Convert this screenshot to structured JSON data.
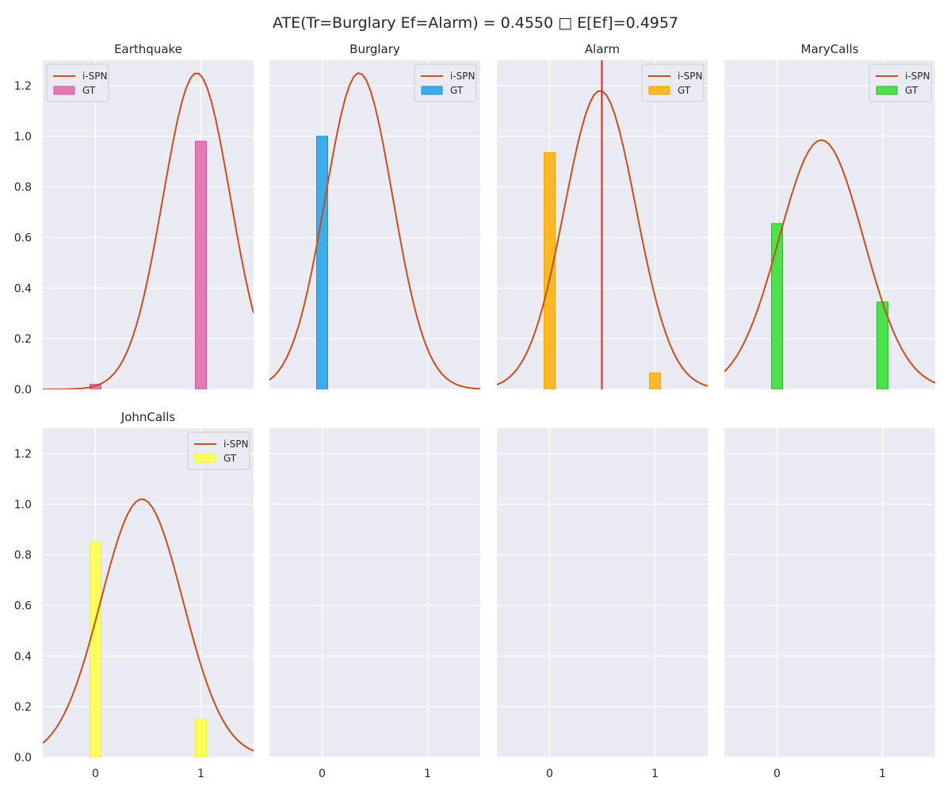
{
  "figure": {
    "suptitle": "ATE(Tr=Burglary Ef=Alarm) = 0.4550 □ E[Ef]=0.4957",
    "background": "#eaeaf2",
    "grid_color": "#ffffff",
    "line_color": "#cc4c1e",
    "vline_color": "#d62718"
  },
  "chart_data": [
    {
      "type": "bar",
      "title": "Earthquake",
      "xlim": [
        -0.5,
        1.5
      ],
      "ylim": [
        0,
        1.3
      ],
      "xticks": [
        "0",
        "1"
      ],
      "yticks": [
        "0.0",
        "0.2",
        "0.4",
        "0.6",
        "0.8",
        "1.0",
        "1.2"
      ],
      "show_xticks": false,
      "show_yticks": true,
      "legend": [
        "i-SPN",
        "GT"
      ],
      "legend_position": "top-left",
      "gt_color": "#e07bb6",
      "gt_edge": "#c8589a",
      "bars": [
        {
          "x": 0,
          "value": 0.02
        },
        {
          "x": 1,
          "value": 0.98
        }
      ],
      "curve": {
        "mean": 0.96,
        "std": 0.32,
        "peak": 1.25
      }
    },
    {
      "type": "bar",
      "title": "Burglary",
      "xlim": [
        -0.5,
        1.5
      ],
      "ylim": [
        0,
        1.3
      ],
      "xticks": [
        "0",
        "1"
      ],
      "yticks": [],
      "show_xticks": false,
      "show_yticks": false,
      "legend": [
        "i-SPN",
        "GT"
      ],
      "legend_position": "top-right",
      "gt_color": "#3aaeea",
      "gt_edge": "#1f8fd0",
      "bars": [
        {
          "x": 0,
          "value": 1.0
        }
      ],
      "curve": {
        "mean": 0.35,
        "std": 0.32,
        "peak": 1.25
      }
    },
    {
      "type": "bar",
      "title": "Alarm",
      "xlim": [
        -0.5,
        1.5
      ],
      "ylim": [
        0,
        1.3
      ],
      "xticks": [
        "0",
        "1"
      ],
      "yticks": [],
      "show_xticks": false,
      "show_yticks": false,
      "legend": [
        "i-SPN",
        "GT"
      ],
      "legend_position": "top-right",
      "gt_color": "#ffb927",
      "gt_edge": "#f5a200",
      "bars": [
        {
          "x": 0,
          "value": 0.935
        },
        {
          "x": 1,
          "value": 0.065
        }
      ],
      "curve": {
        "mean": 0.48,
        "std": 0.34,
        "peak": 1.18
      },
      "vline": 0.4957
    },
    {
      "type": "bar",
      "title": "MaryCalls",
      "xlim": [
        -0.5,
        1.5
      ],
      "ylim": [
        0,
        1.3
      ],
      "xticks": [
        "0",
        "1"
      ],
      "yticks": [],
      "show_xticks": false,
      "show_yticks": false,
      "legend": [
        "i-SPN",
        "GT"
      ],
      "legend_position": "top-right",
      "gt_color": "#4be24b",
      "gt_edge": "#2ab82a",
      "bars": [
        {
          "x": 0,
          "value": 0.655
        },
        {
          "x": 1,
          "value": 0.345
        }
      ],
      "curve": {
        "mean": 0.42,
        "std": 0.4,
        "peak": 0.985
      }
    },
    {
      "type": "bar",
      "title": "JohnCalls",
      "xlim": [
        -0.5,
        1.5
      ],
      "ylim": [
        0,
        1.3
      ],
      "xticks": [
        "0",
        "1"
      ],
      "yticks": [
        "0.0",
        "0.2",
        "0.4",
        "0.6",
        "0.8",
        "1.0",
        "1.2"
      ],
      "show_xticks": true,
      "show_yticks": true,
      "legend": [
        "i-SPN",
        "GT"
      ],
      "legend_position": "top-right",
      "gt_color": "#ffff5a",
      "gt_edge": "#f0f030",
      "bars": [
        {
          "x": 0,
          "value": 0.85
        },
        {
          "x": 1,
          "value": 0.15
        }
      ],
      "curve": {
        "mean": 0.44,
        "std": 0.39,
        "peak": 1.02
      }
    },
    {
      "type": "bar",
      "title": "",
      "xlim": [
        -0.5,
        1.5
      ],
      "ylim": [
        0,
        1.3
      ],
      "xticks": [
        "0",
        "1"
      ],
      "yticks": [],
      "show_xticks": true,
      "show_yticks": false,
      "legend": [],
      "bars": []
    },
    {
      "type": "bar",
      "title": "",
      "xlim": [
        -0.5,
        1.5
      ],
      "ylim": [
        0,
        1.3
      ],
      "xticks": [
        "0",
        "1"
      ],
      "yticks": [],
      "show_xticks": true,
      "show_yticks": false,
      "legend": [],
      "bars": []
    },
    {
      "type": "bar",
      "title": "",
      "xlim": [
        -0.5,
        1.5
      ],
      "ylim": [
        0,
        1.3
      ],
      "xticks": [
        "0",
        "1"
      ],
      "yticks": [],
      "show_xticks": true,
      "show_yticks": false,
      "legend": [],
      "bars": []
    }
  ]
}
